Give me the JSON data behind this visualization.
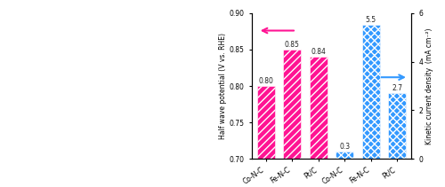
{
  "pink_categories": [
    "Co-N-C",
    "Fe-N-C",
    "Pt/C"
  ],
  "pink_values": [
    0.8,
    0.85,
    0.84
  ],
  "blue_categories": [
    "Co-N-C",
    "Fe-N-C",
    "Pt/C"
  ],
  "blue_values": [
    0.3,
    5.5,
    2.7
  ],
  "pink_color": "#FF1493",
  "blue_color": "#3399FF",
  "left_ylabel": "Half wave potential (V vs. RHE)",
  "right_ylabel": "Kinetic current density  (mA cm⁻²)",
  "left_ylim": [
    0.7,
    0.9
  ],
  "right_ylim": [
    0,
    6
  ],
  "left_yticks": [
    0.7,
    0.75,
    0.8,
    0.85,
    0.9
  ],
  "right_yticks": [
    0,
    2,
    4,
    6
  ],
  "background_color": "#ffffff"
}
